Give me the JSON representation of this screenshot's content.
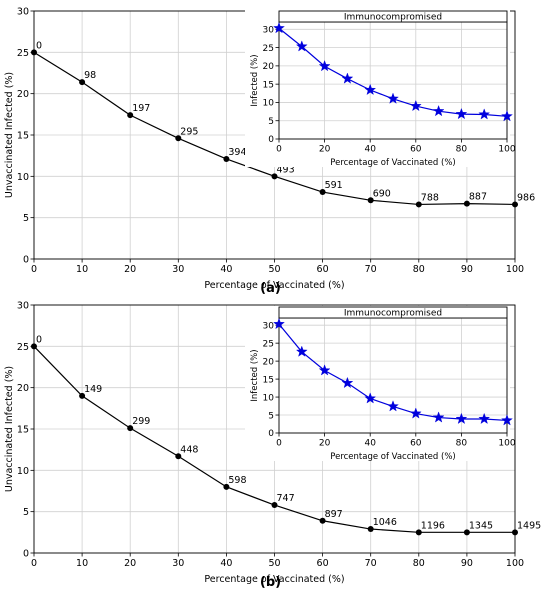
{
  "chart_data": [
    {
      "type": "line",
      "caption": "(a)",
      "xlabel": "Percentage of Vaccinated (%)",
      "ylabel": "Unvaccinated Infected (%)",
      "xlim": [
        0,
        100
      ],
      "ylim": [
        0,
        30
      ],
      "xticks": [
        "0",
        "10",
        "20",
        "30",
        "40",
        "50",
        "60",
        "70",
        "80",
        "90",
        "100"
      ],
      "yticks": [
        "0",
        "5",
        "10",
        "15",
        "20",
        "25",
        "30"
      ],
      "grid": true,
      "color": "#000000",
      "marker": "circle",
      "x": [
        0,
        10,
        20,
        30,
        40,
        50,
        60,
        70,
        80,
        90,
        100
      ],
      "y": [
        25.0,
        21.4,
        17.4,
        14.6,
        12.1,
        10.0,
        8.1,
        7.1,
        6.6,
        6.7,
        6.6
      ],
      "point_labels": [
        "0",
        "98",
        "197",
        "295",
        "394",
        "493",
        "591",
        "690",
        "788",
        "887",
        "986"
      ],
      "inset": {
        "type": "line",
        "title": "Immunocompromised",
        "xlabel": "Percentage of Vaccinated (%)",
        "ylabel": "Infected (%)",
        "xlim": [
          0,
          100
        ],
        "ylim": [
          0,
          32
        ],
        "xticks": [
          "0",
          "20",
          "40",
          "60",
          "80",
          "100"
        ],
        "yticks": [
          "0",
          "5",
          "10",
          "15",
          "20",
          "25",
          "30"
        ],
        "grid": true,
        "color": "#0000dd",
        "marker": "star",
        "x": [
          0,
          10,
          20,
          30,
          40,
          50,
          60,
          70,
          80,
          90,
          100
        ],
        "y": [
          30.3,
          25.3,
          19.9,
          16.5,
          13.4,
          11.0,
          9.0,
          7.6,
          6.8,
          6.7,
          6.2
        ]
      }
    },
    {
      "type": "line",
      "caption": "(b)",
      "xlabel": "Percentage of Vaccinated (%)",
      "ylabel": "Unvaccinated Infected (%)",
      "xlim": [
        0,
        100
      ],
      "ylim": [
        0,
        30
      ],
      "xticks": [
        "0",
        "10",
        "20",
        "30",
        "40",
        "50",
        "60",
        "70",
        "80",
        "90",
        "100"
      ],
      "yticks": [
        "0",
        "5",
        "10",
        "15",
        "20",
        "25",
        "30"
      ],
      "grid": true,
      "color": "#000000",
      "marker": "circle",
      "x": [
        0,
        10,
        20,
        30,
        40,
        50,
        60,
        70,
        80,
        90,
        100
      ],
      "y": [
        25.0,
        19.0,
        15.1,
        11.7,
        8.0,
        5.8,
        3.9,
        2.9,
        2.5,
        2.5,
        2.5
      ],
      "point_labels": [
        "0",
        "149",
        "299",
        "448",
        "598",
        "747",
        "897",
        "1046",
        "1196",
        "1345",
        "1495"
      ],
      "inset": {
        "type": "line",
        "title": "Immunocompromised",
        "xlabel": "Percentage of Vaccinated (%)",
        "ylabel": "Infected (%)",
        "xlim": [
          0,
          100
        ],
        "ylim": [
          0,
          32
        ],
        "xticks": [
          "0",
          "20",
          "40",
          "60",
          "80",
          "100"
        ],
        "yticks": [
          "0",
          "5",
          "10",
          "15",
          "20",
          "25",
          "30"
        ],
        "grid": true,
        "color": "#0000dd",
        "marker": "star",
        "x": [
          0,
          10,
          20,
          30,
          40,
          50,
          60,
          70,
          80,
          90,
          100
        ],
        "y": [
          30.3,
          22.6,
          17.4,
          13.9,
          9.6,
          7.4,
          5.4,
          4.3,
          3.9,
          3.9,
          3.5
        ]
      }
    }
  ]
}
